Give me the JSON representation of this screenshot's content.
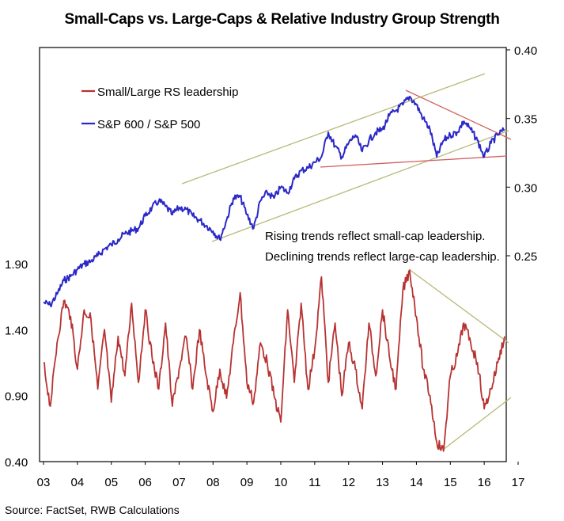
{
  "title": "Small-Caps vs. Large-Caps & Relative Industry Group Strength",
  "source": "Source: FactSet, RWB Calculations",
  "colors": {
    "red": "#b83232",
    "blue": "#2b28c8",
    "trend_olive": "#b8b878",
    "trend_red": "#d06060",
    "frame": "#000000"
  },
  "chart_data": {
    "type": "line",
    "title": "Small-Caps vs. Large-Caps & Relative Industry Group Strength",
    "x_tick_labels": [
      "03",
      "04",
      "05",
      "06",
      "07",
      "08",
      "09",
      "10",
      "11",
      "12",
      "13",
      "14",
      "15",
      "16",
      "17"
    ],
    "xlim": [
      2003,
      2017
    ],
    "y_left": {
      "ticks": [
        "1.90",
        "1.40",
        "0.90",
        "0.40"
      ],
      "tick_values": [
        1.9,
        1.4,
        0.9,
        0.4
      ],
      "range": [
        0.4,
        3.5
      ]
    },
    "y_right": {
      "ticks": [
        "0.40",
        "0.35",
        "0.30",
        "0.25"
      ],
      "tick_values": [
        0.4,
        0.35,
        0.3,
        0.25
      ],
      "range": [
        0.1,
        0.4
      ]
    },
    "legend": {
      "placement": "top-left",
      "items": [
        "Small/Large RS leadership",
        "S&P 600 / S&P 500"
      ]
    },
    "annotation": [
      "Rising trends reflect small-cap leadership.",
      "Declining trends reflect large-cap leadership."
    ],
    "series": [
      {
        "name": "S&P 600 / S&P 500",
        "axis": "right",
        "x": [
          2003.0,
          2003.2,
          2003.4,
          2003.6,
          2003.8,
          2004.0,
          2004.2,
          2004.4,
          2004.6,
          2004.8,
          2005.0,
          2005.2,
          2005.4,
          2005.6,
          2005.8,
          2006.0,
          2006.2,
          2006.4,
          2006.6,
          2006.8,
          2007.0,
          2007.2,
          2007.4,
          2007.6,
          2007.8,
          2008.0,
          2008.2,
          2008.4,
          2008.6,
          2008.8,
          2009.0,
          2009.2,
          2009.4,
          2009.6,
          2009.8,
          2010.0,
          2010.2,
          2010.4,
          2010.6,
          2010.8,
          2011.0,
          2011.2,
          2011.4,
          2011.6,
          2011.8,
          2012.0,
          2012.2,
          2012.4,
          2012.6,
          2012.8,
          2013.0,
          2013.2,
          2013.4,
          2013.6,
          2013.8,
          2014.0,
          2014.2,
          2014.4,
          2014.6,
          2014.8,
          2015.0,
          2015.2,
          2015.4,
          2015.6,
          2015.8,
          2016.0,
          2016.2,
          2016.4,
          2016.6
        ],
        "values": [
          0.216,
          0.214,
          0.222,
          0.232,
          0.235,
          0.24,
          0.244,
          0.246,
          0.25,
          0.255,
          0.258,
          0.262,
          0.266,
          0.268,
          0.27,
          0.279,
          0.285,
          0.29,
          0.286,
          0.28,
          0.285,
          0.284,
          0.279,
          0.276,
          0.272,
          0.268,
          0.262,
          0.276,
          0.292,
          0.293,
          0.28,
          0.27,
          0.29,
          0.296,
          0.292,
          0.3,
          0.296,
          0.306,
          0.312,
          0.314,
          0.318,
          0.322,
          0.34,
          0.33,
          0.322,
          0.332,
          0.338,
          0.326,
          0.334,
          0.34,
          0.342,
          0.352,
          0.356,
          0.36,
          0.366,
          0.36,
          0.35,
          0.342,
          0.322,
          0.334,
          0.338,
          0.34,
          0.348,
          0.342,
          0.334,
          0.322,
          0.332,
          0.338,
          0.342
        ]
      },
      {
        "name": "Small/Large RS leadership",
        "axis": "left",
        "x": [
          2003.0,
          2003.2,
          2003.4,
          2003.6,
          2003.8,
          2004.0,
          2004.2,
          2004.4,
          2004.6,
          2004.8,
          2005.0,
          2005.2,
          2005.4,
          2005.6,
          2005.8,
          2006.0,
          2006.2,
          2006.4,
          2006.6,
          2006.8,
          2007.0,
          2007.2,
          2007.4,
          2007.6,
          2007.8,
          2008.0,
          2008.2,
          2008.4,
          2008.6,
          2008.8,
          2009.0,
          2009.2,
          2009.4,
          2009.6,
          2009.8,
          2010.0,
          2010.2,
          2010.4,
          2010.6,
          2010.8,
          2011.0,
          2011.2,
          2011.4,
          2011.6,
          2011.8,
          2012.0,
          2012.2,
          2012.4,
          2012.6,
          2012.8,
          2013.0,
          2013.2,
          2013.4,
          2013.6,
          2013.8,
          2014.0,
          2014.2,
          2014.4,
          2014.6,
          2014.8,
          2015.0,
          2015.2,
          2015.4,
          2015.6,
          2015.8,
          2016.0,
          2016.2,
          2016.4,
          2016.6
        ],
        "values": [
          1.15,
          0.82,
          1.3,
          1.62,
          1.5,
          1.1,
          1.55,
          1.48,
          0.95,
          1.4,
          0.85,
          1.35,
          1.05,
          1.6,
          1.0,
          1.55,
          1.2,
          0.95,
          1.45,
          0.82,
          1.1,
          1.35,
          0.95,
          1.4,
          1.05,
          0.78,
          1.1,
          0.88,
          1.3,
          1.68,
          1.0,
          0.85,
          1.3,
          1.15,
          0.9,
          0.7,
          1.55,
          1.0,
          1.6,
          0.95,
          1.25,
          1.8,
          1.0,
          1.45,
          0.9,
          1.3,
          1.1,
          0.8,
          1.45,
          1.05,
          1.55,
          1.2,
          0.95,
          1.7,
          1.85,
          1.5,
          1.1,
          0.9,
          0.55,
          0.48,
          1.05,
          1.2,
          1.45,
          1.3,
          1.15,
          0.8,
          0.95,
          1.15,
          1.35
        ]
      }
    ]
  }
}
